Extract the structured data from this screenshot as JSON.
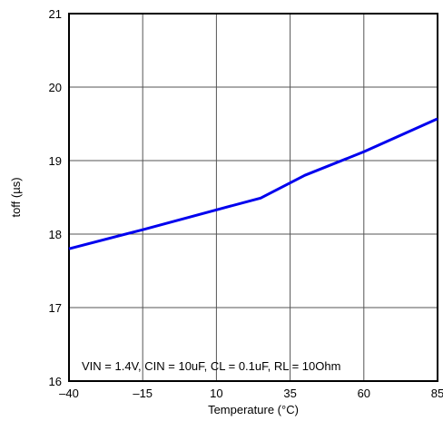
{
  "chart_data": {
    "type": "line",
    "xlabel": "Temperature (°C)",
    "ylabel": "toff (µs)",
    "xlim": [
      -40,
      85
    ],
    "ylim": [
      16,
      21
    ],
    "x_ticks": [
      -40,
      -15,
      10,
      35,
      60,
      85
    ],
    "x_tick_labels": [
      "–40",
      "–15",
      "10",
      "35",
      "60",
      "85"
    ],
    "y_ticks": [
      16,
      17,
      18,
      19,
      20,
      21
    ],
    "y_tick_labels": [
      "16",
      "17",
      "18",
      "19",
      "20",
      "21"
    ],
    "grid": true,
    "annotation": "VIN = 1.4V, CIN = 10uF, CL = 0.1uF, RL = 10Ohm",
    "series": [
      {
        "color": "#0000ee",
        "x": [
          -40,
          -15,
          10,
          25,
          40,
          60,
          85
        ],
        "y": [
          17.8,
          18.06,
          18.33,
          18.49,
          18.8,
          19.12,
          19.57
        ]
      }
    ]
  }
}
